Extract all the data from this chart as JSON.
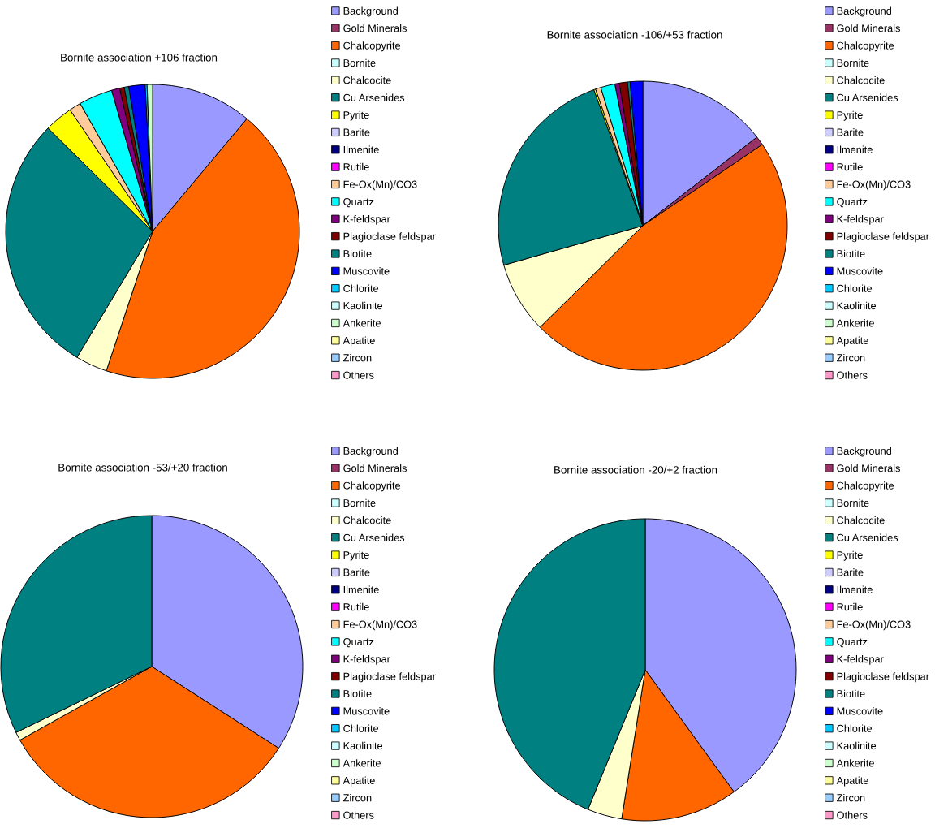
{
  "chart_data": [
    {
      "type": "pie",
      "title": "Bornite association +106 fraction",
      "categories": [
        "Background",
        "Gold Minerals",
        "Chalcopyrite",
        "Bornite",
        "Chalcocite",
        "Cu Arsenides",
        "Pyrite",
        "Barite",
        "Ilmenite",
        "Rutile",
        "Fe-Ox(Mn)/CO3",
        "Quartz",
        "K-feldspar",
        "Plagioclase feldspar",
        "Biotite",
        "Muscovite",
        "Chlorite",
        "Kaolinite",
        "Ankerite",
        "Apatite",
        "Zircon",
        "Others"
      ],
      "values": [
        11.1,
        0,
        44.0,
        0,
        3.5,
        28.8,
        3.1,
        0,
        0,
        0,
        1.3,
        3.7,
        0.9,
        0.5,
        0.5,
        1.8,
        0.2,
        0,
        0.6,
        0,
        0,
        0
      ],
      "colors": [
        "#9999ff",
        "#993366",
        "#ff6600",
        "#ccffff",
        "#ffffcc",
        "#008080",
        "#ffff00",
        "#ccccff",
        "#000080",
        "#ff00ff",
        "#ffcc99",
        "#00ffff",
        "#800080",
        "#800000",
        "#008080",
        "#0000ff",
        "#00ccff",
        "#ccffff",
        "#ccffcc",
        "#ffff99",
        "#99ccff",
        "#ff99cc"
      ],
      "legend": "right"
    },
    {
      "type": "pie",
      "title": "Bornite association -106/+53 fraction",
      "categories": [
        "Background",
        "Gold Minerals",
        "Chalcopyrite",
        "Bornite",
        "Chalcocite",
        "Cu Arsenides",
        "Pyrite",
        "Barite",
        "Ilmenite",
        "Rutile",
        "Fe-Ox(Mn)/CO3",
        "Quartz",
        "K-feldspar",
        "Plagioclase feldspar",
        "Biotite",
        "Muscovite",
        "Chlorite",
        "Kaolinite",
        "Ankerite",
        "Apatite",
        "Zircon",
        "Others"
      ],
      "values": [
        14.5,
        1.0,
        47.1,
        0,
        8.0,
        23.9,
        0.2,
        0,
        0,
        0,
        0.6,
        1.6,
        0.5,
        0.9,
        0.3,
        1.4,
        0,
        0,
        0,
        0,
        0,
        0
      ],
      "colors": [
        "#9999ff",
        "#993366",
        "#ff6600",
        "#ccffff",
        "#ffffcc",
        "#008080",
        "#ffff00",
        "#ccccff",
        "#000080",
        "#ff00ff",
        "#ffcc99",
        "#00ffff",
        "#800080",
        "#800000",
        "#008080",
        "#0000ff",
        "#00ccff",
        "#ccffff",
        "#ccffcc",
        "#ffff99",
        "#99ccff",
        "#ff99cc"
      ],
      "legend": "right"
    },
    {
      "type": "pie",
      "title": "Bornite association -53/+20 fraction",
      "categories": [
        "Background",
        "Gold Minerals",
        "Chalcopyrite",
        "Bornite",
        "Chalcocite",
        "Cu Arsenides",
        "Pyrite",
        "Barite",
        "Ilmenite",
        "Rutile",
        "Fe-Ox(Mn)/CO3",
        "Quartz",
        "K-feldspar",
        "Plagioclase feldspar",
        "Biotite",
        "Muscovite",
        "Chlorite",
        "Kaolinite",
        "Ankerite",
        "Apatite",
        "Zircon",
        "Others"
      ],
      "values": [
        34.1,
        0,
        32.8,
        0,
        0.9,
        32.2,
        0,
        0,
        0,
        0,
        0,
        0,
        0,
        0,
        0,
        0,
        0,
        0,
        0,
        0,
        0,
        0
      ],
      "colors": [
        "#9999ff",
        "#993366",
        "#ff6600",
        "#ccffff",
        "#ffffcc",
        "#008080",
        "#ffff00",
        "#ccccff",
        "#000080",
        "#ff00ff",
        "#ffcc99",
        "#00ffff",
        "#800080",
        "#800000",
        "#008080",
        "#0000ff",
        "#00ccff",
        "#ccffff",
        "#ccffcc",
        "#ffff99",
        "#99ccff",
        "#ff99cc"
      ],
      "legend": "right"
    },
    {
      "type": "pie",
      "title": "Bornite association -20/+2 fraction",
      "categories": [
        "Background",
        "Gold Minerals",
        "Chalcopyrite",
        "Bornite",
        "Chalcocite",
        "Cu Arsenides",
        "Pyrite",
        "Barite",
        "Ilmenite",
        "Rutile",
        "Fe-Ox(Mn)/CO3",
        "Quartz",
        "K-feldspar",
        "Plagioclase feldspar",
        "Biotite",
        "Muscovite",
        "Chlorite",
        "Kaolinite",
        "Ankerite",
        "Apatite",
        "Zircon",
        "Others"
      ],
      "values": [
        40.0,
        0,
        12.5,
        0,
        3.7,
        43.8,
        0,
        0,
        0,
        0,
        0,
        0,
        0,
        0,
        0,
        0,
        0,
        0,
        0,
        0,
        0,
        0
      ],
      "colors": [
        "#9999ff",
        "#993366",
        "#ff6600",
        "#ccffff",
        "#ffffcc",
        "#008080",
        "#ffff00",
        "#ccccff",
        "#000080",
        "#ff00ff",
        "#ffcc99",
        "#00ffff",
        "#800080",
        "#800000",
        "#008080",
        "#0000ff",
        "#00ccff",
        "#ccffff",
        "#ccffcc",
        "#ffff99",
        "#99ccff",
        "#ff99cc"
      ],
      "legend": "right"
    }
  ]
}
